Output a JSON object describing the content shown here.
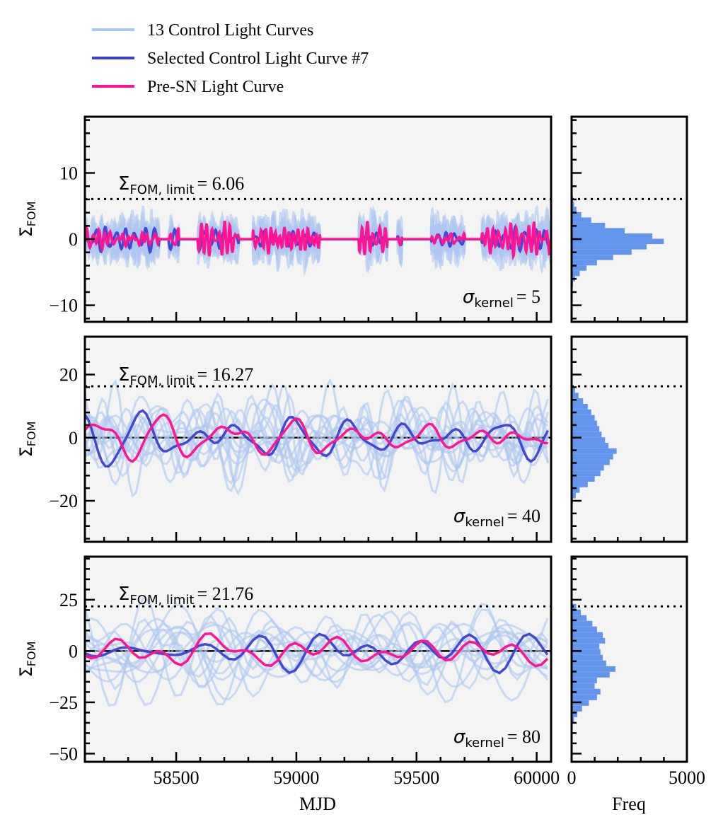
{
  "chart_data": {
    "type": "line",
    "legend": {
      "placement": "top-left",
      "entries": [
        {
          "label": "13 Control Light Curves",
          "color": "#aec7f0"
        },
        {
          "label": "Selected Control Light Curve #7",
          "color": "#3c3fd0"
        },
        {
          "label": "Pre-SN Light Curve",
          "color": "#ff1493"
        }
      ]
    },
    "xlabel": "MJD",
    "xlim": [
      58120,
      60060
    ],
    "xticks": [
      58500,
      59000,
      59500,
      60000
    ],
    "hist_xlabel": "Freq",
    "hist_xlim": [
      0,
      5000
    ],
    "hist_xticks": [
      0,
      5000
    ],
    "ylabel_main": "Σ",
    "ylabel_sub": "FOM",
    "panels": [
      {
        "sigma_kernel_prefix": "σ",
        "sigma_kernel_sub": "kernel",
        "sigma_kernel_value": "= 5",
        "limit_prefix": "Σ",
        "limit_sub": "FOM, limit",
        "limit_value": "= 6.06",
        "limit": 6.06,
        "ylim": [
          -12.5,
          18.5
        ],
        "yticks": [
          -10,
          0,
          10
        ],
        "amplitude": 2.2,
        "wavelength": 28,
        "hist_counts": [
          30,
          60,
          150,
          350,
          650,
          1100,
          1800,
          2600,
          3250,
          4000,
          3500,
          2300,
          1450,
          850,
          420,
          210,
          110,
          60
        ],
        "hist_range": [
          -8,
          6.5
        ]
      },
      {
        "sigma_kernel_prefix": "σ",
        "sigma_kernel_sub": "kernel",
        "sigma_kernel_value": "= 40",
        "limit_prefix": "Σ",
        "limit_sub": "FOM, limit",
        "limit_value": "= 16.27",
        "limit": 16.27,
        "ylim": [
          -33,
          32
        ],
        "yticks": [
          -20,
          0,
          20
        ],
        "amplitude": 9,
        "wavelength": 170,
        "hist_counts": [
          60,
          180,
          350,
          700,
          1000,
          1250,
          1400,
          1650,
          1800,
          1950,
          1600,
          1450,
          1300,
          1200,
          1100,
          1000,
          850,
          700,
          500,
          300,
          150
        ],
        "hist_range": [
          -21,
          16
        ]
      },
      {
        "sigma_kernel_prefix": "σ",
        "sigma_kernel_sub": "kernel",
        "sigma_kernel_value": "= 80",
        "limit_prefix": "Σ",
        "limit_sub": "FOM, limit",
        "limit_value": "= 21.76",
        "limit": 21.76,
        "ylim": [
          -54,
          46
        ],
        "yticks": [
          -50,
          -25,
          0,
          25
        ],
        "amplitude": 13,
        "wavelength": 300,
        "hist_counts": [
          100,
          250,
          450,
          750,
          1100,
          1250,
          1000,
          1100,
          1650,
          1900,
          1500,
          1350,
          1250,
          1200,
          1450,
          1350,
          1100,
          900,
          650,
          400,
          200
        ],
        "hist_range": [
          -35,
          23
        ]
      }
    ]
  }
}
